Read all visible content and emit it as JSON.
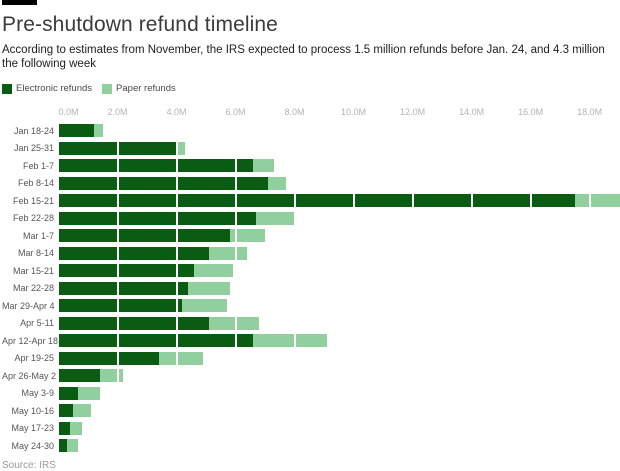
{
  "chart_data": {
    "type": "bar",
    "orientation": "horizontal",
    "stacked": true,
    "title": "Pre-shutdown refund timeline",
    "subtitle": "According to estimates from November, the IRS expected to process 1.5 million refunds before Jan. 24, and 4.3 million the following week",
    "categories": [
      "Jan 18-24",
      "Jan 25-31",
      "Feb 1-7",
      "Feb 8-14",
      "Feb 15-21",
      "Feb 22-28",
      "Mar 1-7",
      "Mar 8-14",
      "Mar 15-21",
      "Mar 22-28",
      "Mar 29-Apr 4",
      "Apr 5-11",
      "Apr 12-Apr 18",
      "Apr 19-25",
      "Apr 26-May 2",
      "May 3-9",
      "May 10-16",
      "May 17-23",
      "May 24-30"
    ],
    "series": [
      {
        "name": "Electronic refunds",
        "color": "#0a5c12",
        "values": [
          1.2,
          4.0,
          6.6,
          7.1,
          17.5,
          6.7,
          5.8,
          5.1,
          4.6,
          4.4,
          4.2,
          5.1,
          6.6,
          3.4,
          1.4,
          0.65,
          0.5,
          0.4,
          0.3
        ]
      },
      {
        "name": "Paper refunds",
        "color": "#92cf9f",
        "values": [
          0.3,
          0.3,
          0.7,
          0.6,
          1.6,
          1.3,
          1.2,
          1.3,
          1.3,
          1.4,
          1.5,
          1.7,
          2.5,
          1.5,
          0.8,
          0.75,
          0.6,
          0.4,
          0.35
        ]
      }
    ],
    "x_axis": {
      "ticks": [
        "0.0M",
        "2.0M",
        "4.0M",
        "6.0M",
        "8.0M",
        "10.0M",
        "12.0M",
        "14.0M",
        "16.0M",
        "18.0M"
      ],
      "tick_values": [
        0,
        2,
        4,
        6,
        8,
        10,
        12,
        14,
        16,
        18
      ]
    },
    "xlim": [
      0,
      19.03
    ],
    "xlabel": "",
    "ylabel": "",
    "legend_position": "top-left",
    "grid": "vertical white gridlines every 2M, visible as gaps across bars",
    "notes": "Feb 15-21 bar total (~19.1M) is clipped at the right edge of the plot",
    "units": "millions of refunds",
    "source": "Source: IRS"
  }
}
